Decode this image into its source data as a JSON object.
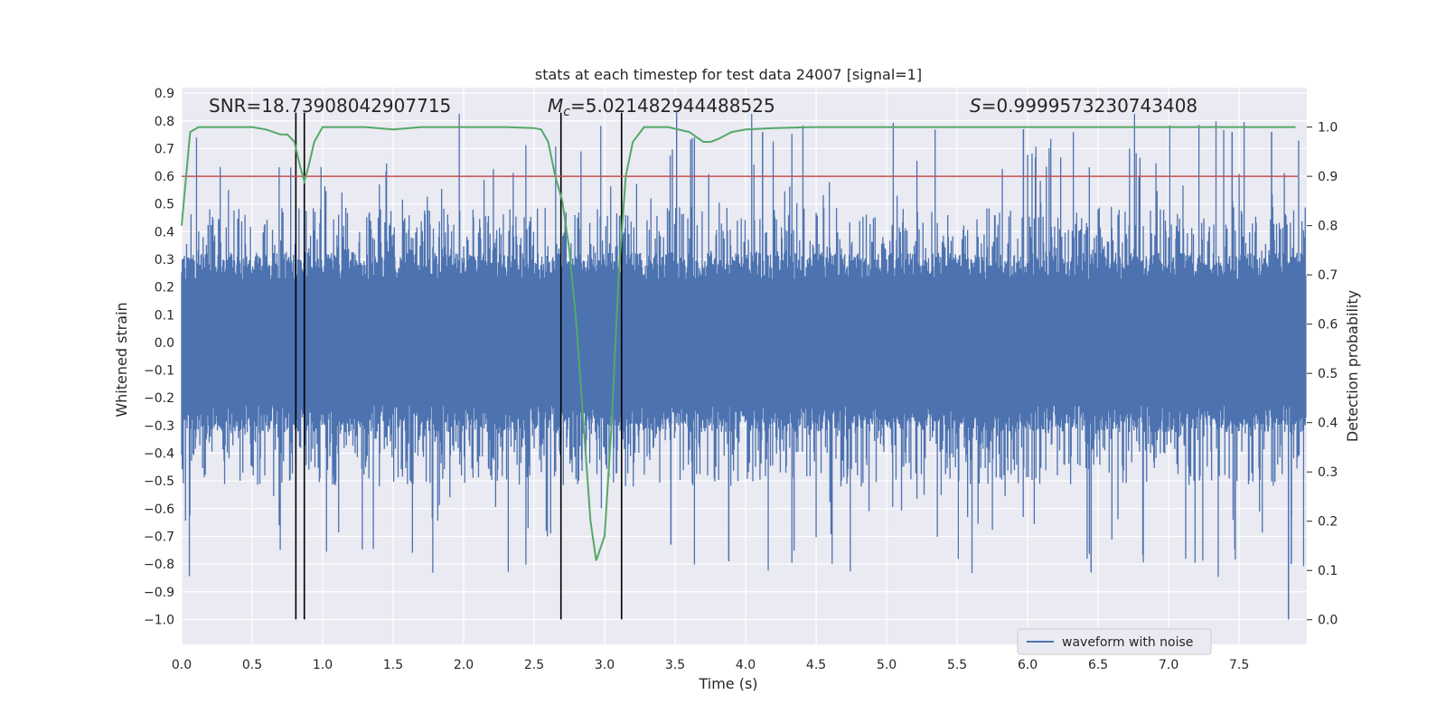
{
  "chart_data": {
    "type": "line",
    "title": "stats at each timestep for test data 24007 [signal=1]",
    "xlabel": "Time (s)",
    "ylabel": "Whitened strain",
    "y2label": "Detection probability",
    "xlim": [
      0.0,
      7.98
    ],
    "ylim": [
      -1.09,
      0.92
    ],
    "y2lim": [
      -0.05,
      1.08
    ],
    "xticks": [
      0.0,
      0.5,
      1.0,
      1.5,
      2.0,
      2.5,
      3.0,
      3.5,
      4.0,
      4.5,
      5.0,
      5.5,
      6.0,
      6.5,
      7.0,
      7.5
    ],
    "xtick_labels": [
      "0.0",
      "0.5",
      "1.0",
      "1.5",
      "2.0",
      "2.5",
      "3.0",
      "3.5",
      "4.0",
      "4.5",
      "5.0",
      "5.5",
      "6.0",
      "6.5",
      "7.0",
      "7.5"
    ],
    "yticks": [
      0.9,
      0.8,
      0.7,
      0.6,
      0.5,
      0.4,
      0.3,
      0.2,
      0.1,
      0.0,
      -0.1,
      -0.2,
      -0.3,
      -0.4,
      -0.5,
      -0.6,
      -0.7,
      -0.8,
      -0.9,
      -1.0
    ],
    "ytick_labels": [
      "0.9",
      "0.8",
      "0.7",
      "0.6",
      "0.5",
      "0.4",
      "0.3",
      "0.2",
      "0.1",
      "0.0",
      "−0.1",
      "−0.2",
      "−0.3",
      "−0.4",
      "−0.5",
      "−0.6",
      "−0.7",
      "−0.8",
      "−0.9",
      "−1.0"
    ],
    "y2ticks": [
      1.0,
      0.9,
      0.8,
      0.7,
      0.6,
      0.5,
      0.4,
      0.3,
      0.2,
      0.1,
      0.0
    ],
    "y2tick_labels": [
      "1.0",
      "0.9",
      "0.8",
      "0.7",
      "0.6",
      "0.5",
      "0.4",
      "0.3",
      "0.2",
      "0.1",
      "0.0"
    ],
    "annotations": {
      "snr": "SNR=18.73908042907715",
      "mc_symbol": "M",
      "mc_sub": "c",
      "mc_value": "=5.021482944488525",
      "s_symbol": "S",
      "s_value": "=0.9999573230743408"
    },
    "legend": {
      "label": "waveform with noise",
      "placement": "lower right"
    },
    "threshold": {
      "value": 0.9,
      "axis": "y2",
      "color": "#c44e52"
    },
    "vlines_x": [
      0.81,
      0.87,
      2.69,
      3.12
    ],
    "vline_ymin": -1.0,
    "vline_ymax": 0.83,
    "probability_series": {
      "name": "detection probability",
      "color": "#55a868",
      "x": [
        0.0,
        0.06,
        0.12,
        0.2,
        0.3,
        0.4,
        0.5,
        0.6,
        0.7,
        0.75,
        0.8,
        0.84,
        0.87,
        0.9,
        0.94,
        1.0,
        1.1,
        1.3,
        1.5,
        1.7,
        2.0,
        2.3,
        2.5,
        2.55,
        2.6,
        2.65,
        2.7,
        2.75,
        2.8,
        2.85,
        2.9,
        2.94,
        3.0,
        3.05,
        3.1,
        3.15,
        3.2,
        3.28,
        3.35,
        3.45,
        3.6,
        3.65,
        3.7,
        3.75,
        3.8,
        3.9,
        4.0,
        4.2,
        4.5,
        5.0,
        6.0,
        7.0,
        7.9
      ],
      "values": [
        0.8,
        0.99,
        1.0,
        1.0,
        1.0,
        1.0,
        1.0,
        0.995,
        0.985,
        0.985,
        0.97,
        0.92,
        0.89,
        0.92,
        0.97,
        1.0,
        1.0,
        1.0,
        0.995,
        1.0,
        1.0,
        1.0,
        0.998,
        0.995,
        0.97,
        0.9,
        0.85,
        0.75,
        0.6,
        0.4,
        0.2,
        0.12,
        0.17,
        0.4,
        0.7,
        0.9,
        0.97,
        1.0,
        1.0,
        1.0,
        0.99,
        0.98,
        0.97,
        0.97,
        0.975,
        0.99,
        0.995,
        0.998,
        1.0,
        1.0,
        1.0,
        1.0,
        1.0
      ]
    },
    "series": [
      {
        "name": "waveform with noise",
        "color": "#4c72b0",
        "sample_rate": 256,
        "seed": 24007,
        "core_amplitude": 0.27,
        "spike_max": 0.83,
        "spike_min": -1.0
      }
    ],
    "colors": {
      "background": "#eaeaf2",
      "grid": "#ffffff",
      "vline": "#000000"
    }
  }
}
